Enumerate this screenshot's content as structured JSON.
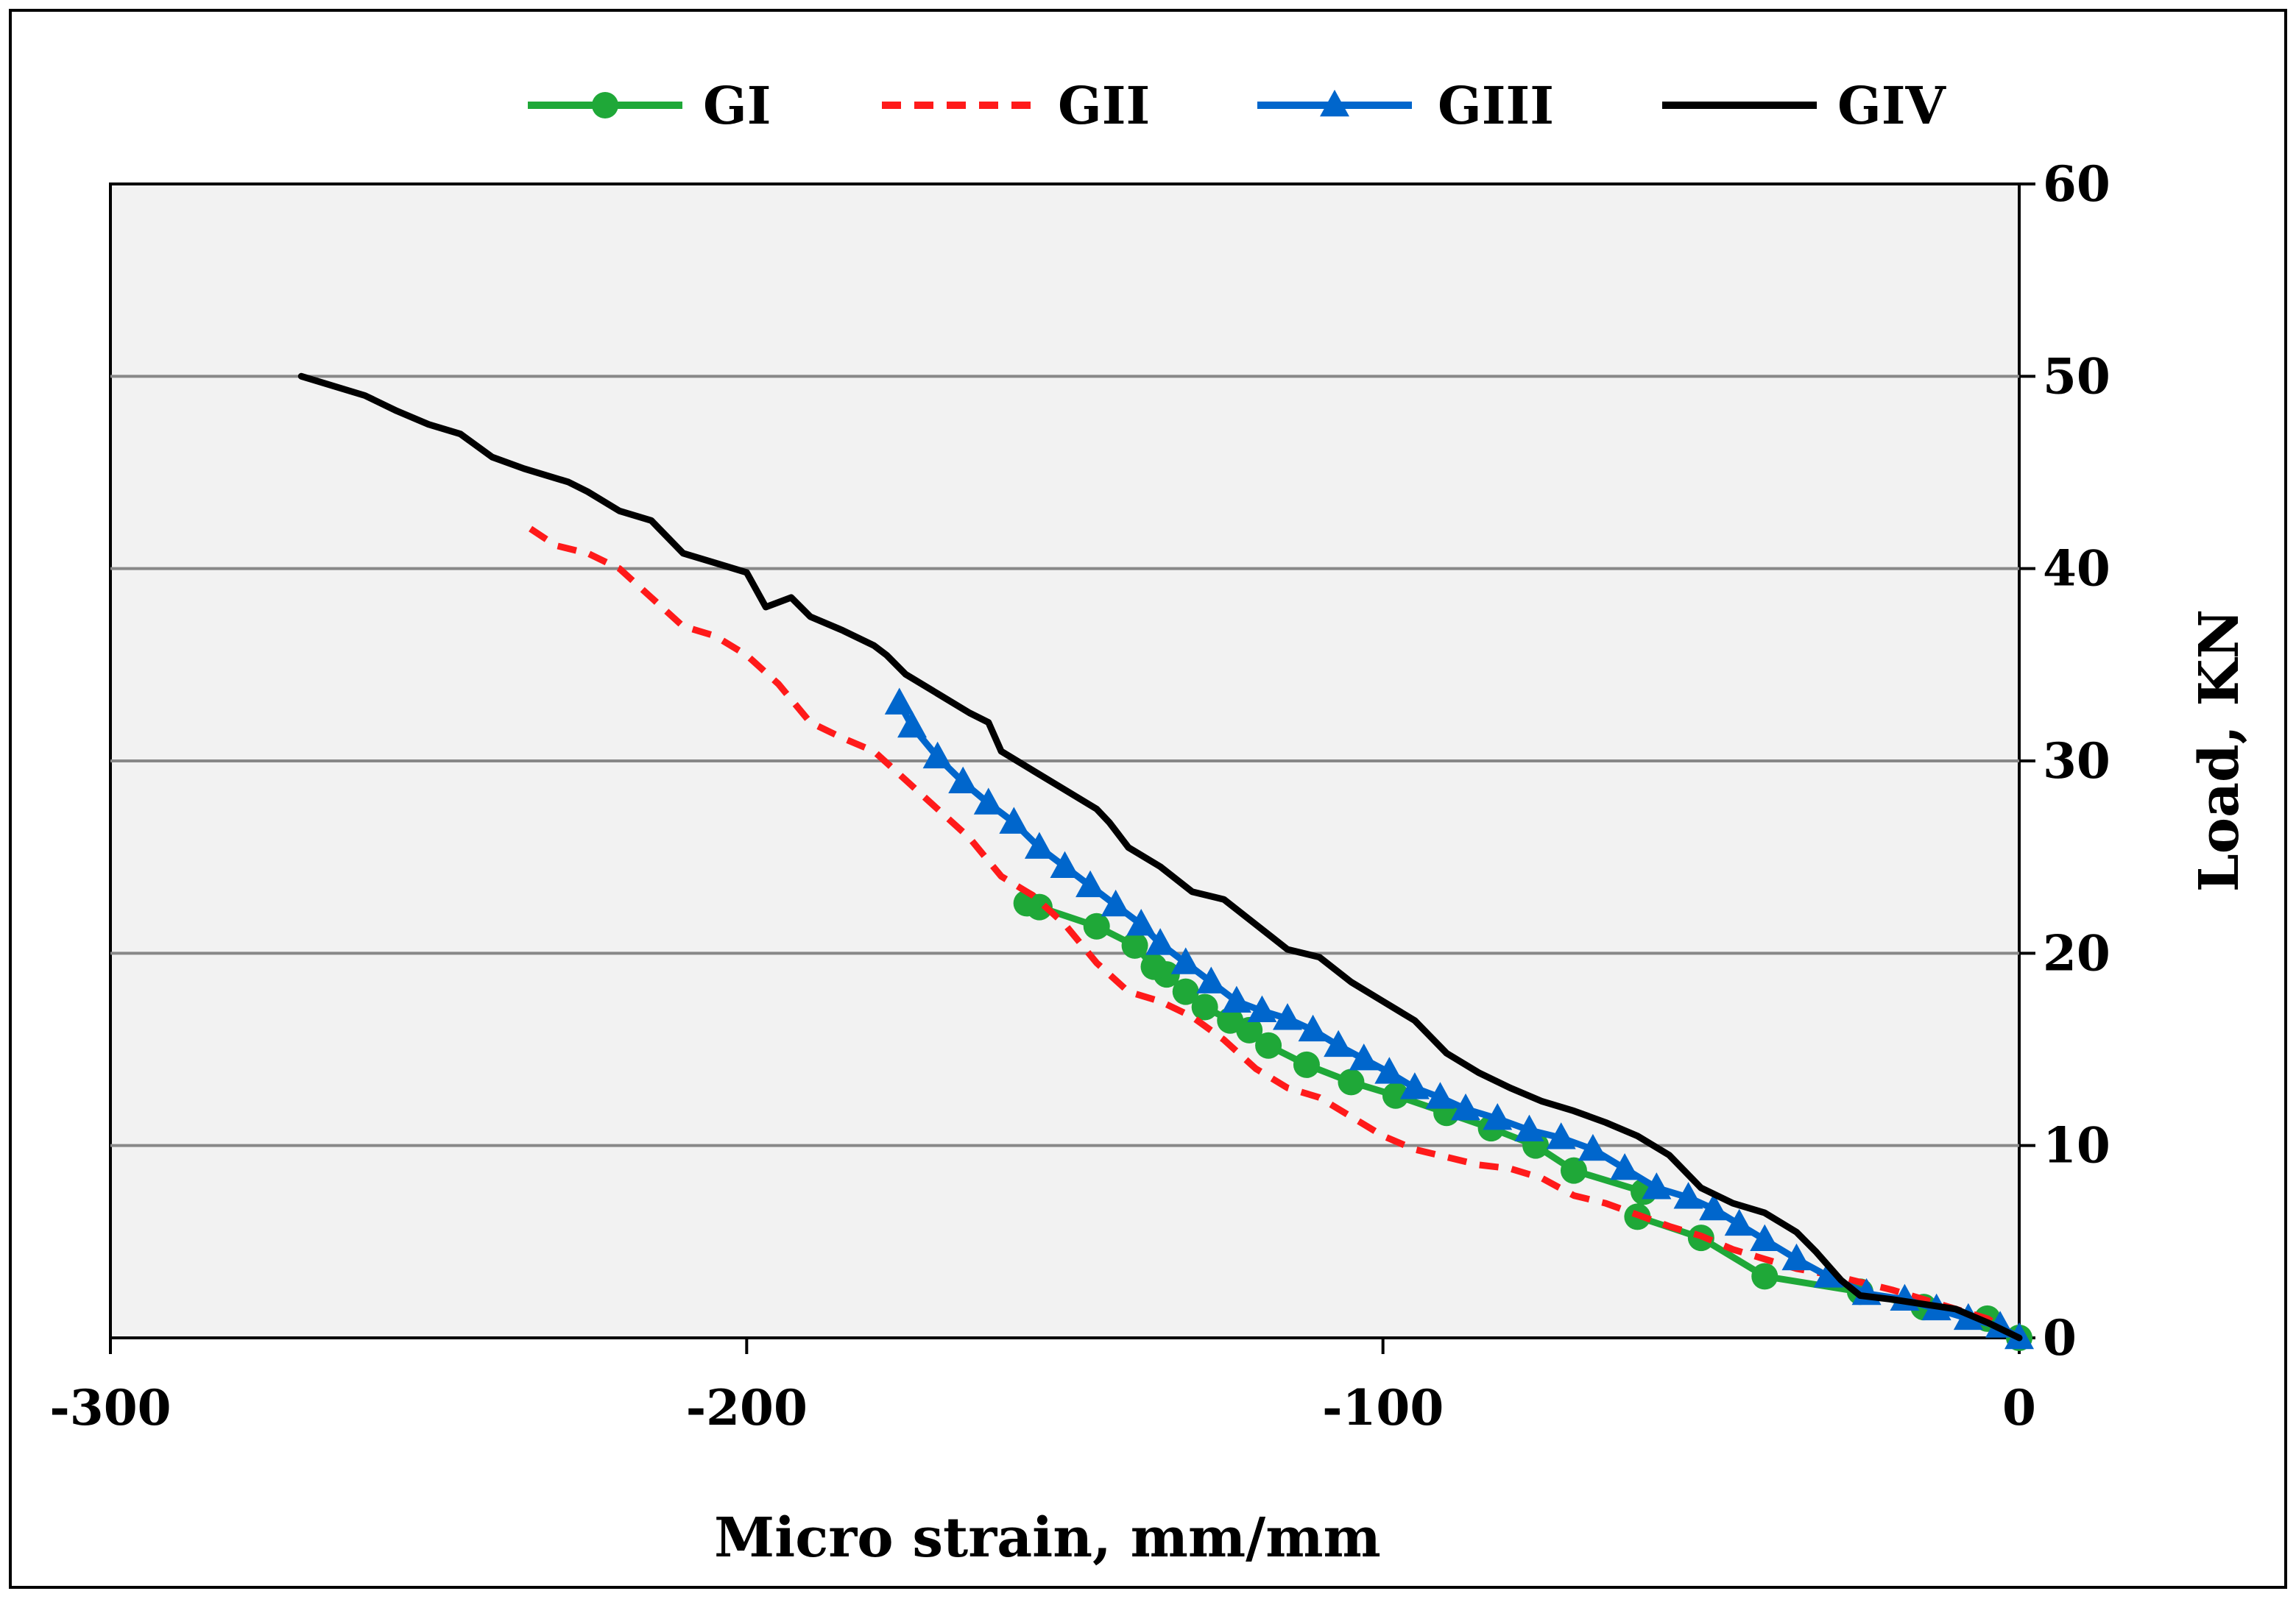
{
  "chart_data": {
    "type": "line",
    "title": "",
    "xlabel": "Micro strain, mm/mm",
    "ylabel": "Load, KN",
    "xlim": [
      -300,
      0
    ],
    "ylim": [
      0,
      60
    ],
    "xticks": [
      -300,
      -200,
      -100,
      0
    ],
    "yticks": [
      0,
      10,
      20,
      30,
      40,
      50,
      60
    ],
    "xtick_labels": [
      "-300",
      "-200",
      "-100",
      "0"
    ],
    "ytick_labels": [
      "0",
      "10",
      "20",
      "30",
      "40",
      "50",
      "60"
    ],
    "grid": "horizontal",
    "y_axis_side": "right",
    "legend_position": "top",
    "background": "#f2f2f2",
    "series": [
      {
        "name": "GI",
        "color": "#1fa838",
        "style": "solid-circle-markers",
        "x": [
          0,
          -5,
          -15,
          -25,
          -40,
          -50,
          -60,
          -59,
          -70,
          -76,
          -83,
          -90,
          -98,
          -105,
          -112,
          -118,
          -121,
          -124,
          -128,
          -131,
          -134,
          -136,
          -139,
          -145,
          -154,
          -156
        ],
        "y": [
          0,
          1.0,
          1.6,
          2.4,
          3.2,
          5.2,
          6.3,
          7.6,
          8.7,
          10.0,
          10.9,
          11.7,
          12.6,
          13.3,
          14.2,
          15.2,
          16.0,
          16.5,
          17.2,
          18.0,
          18.9,
          19.3,
          20.4,
          21.4,
          22.4,
          22.6
        ]
      },
      {
        "name": "GII",
        "color": "#ff1a1a",
        "style": "dashed",
        "x": [
          0,
          -5,
          -10,
          -15,
          -20,
          -25,
          -30,
          -35,
          -40,
          -45,
          -50,
          -55,
          -60,
          -65,
          -70,
          -75,
          -80,
          -85,
          -90,
          -95,
          -100,
          -105,
          -110,
          -115,
          -120,
          -125,
          -130,
          -135,
          -140,
          -145,
          -150,
          -155,
          -160,
          -165,
          -170,
          -175,
          -180,
          -185,
          -190,
          -195,
          -200,
          -205,
          -210,
          -215,
          -220,
          -225,
          -230,
          -235
        ],
        "y": [
          0,
          1.0,
          1.5,
          2.0,
          2.5,
          2.9,
          3.3,
          3.6,
          4.1,
          4.6,
          5.3,
          5.8,
          6.4,
          7.0,
          7.4,
          8.3,
          8.8,
          9.0,
          9.4,
          9.8,
          10.5,
          11.5,
          12.5,
          13.0,
          14.0,
          15.5,
          16.7,
          17.5,
          18.0,
          19.5,
          21.5,
          23.0,
          24.0,
          26.0,
          27.5,
          29.0,
          30.5,
          31.2,
          32.0,
          34.0,
          35.5,
          36.5,
          37.0,
          38.5,
          40.0,
          40.8,
          41.2,
          42.3
        ]
      },
      {
        "name": "GIII",
        "color": "#0066cc",
        "style": "solid-triangle-markers",
        "x": [
          0,
          -3,
          -8,
          -13,
          -18,
          -24,
          -30,
          -35,
          -40,
          -44,
          -48,
          -52,
          -57,
          -62,
          -67,
          -72,
          -77,
          -82,
          -87,
          -91,
          -95,
          -99,
          -103,
          -107,
          -111,
          -115,
          -119,
          -123,
          -127,
          -131,
          -135,
          -138,
          -142,
          -146,
          -150,
          -154,
          -158,
          -162,
          -166,
          -170,
          -174,
          -176
        ],
        "y": [
          0,
          0.6,
          1.0,
          1.5,
          2.0,
          2.3,
          3.2,
          4.1,
          5.1,
          5.9,
          6.7,
          7.3,
          7.8,
          8.8,
          9.8,
          10.4,
          10.8,
          11.4,
          11.9,
          12.5,
          13.0,
          13.8,
          14.5,
          15.2,
          16.0,
          16.6,
          17.0,
          17.5,
          18.5,
          19.5,
          20.5,
          21.5,
          22.5,
          23.5,
          24.5,
          25.5,
          26.8,
          27.8,
          28.9,
          30.2,
          31.8,
          33.0
        ]
      },
      {
        "name": "GIV",
        "color": "#000000",
        "style": "solid",
        "x": [
          0,
          -5,
          -10,
          -20,
          -25,
          -28,
          -32,
          -35,
          -40,
          -45,
          -50,
          -55,
          -60,
          -65,
          -70,
          -75,
          -80,
          -85,
          -90,
          -95,
          -100,
          -105,
          -110,
          -115,
          -120,
          -125,
          -130,
          -135,
          -140,
          -143,
          -145,
          -150,
          -155,
          -160,
          -162,
          -165,
          -170,
          -175,
          -178,
          -180,
          -185,
          -190,
          -193,
          -197,
          -200,
          -205,
          -210,
          -215,
          -220,
          -225,
          -228,
          -235,
          -240,
          -245,
          -250,
          -255,
          -260,
          -270
        ],
        "y": [
          0,
          0.8,
          1.5,
          2.0,
          2.2,
          3.0,
          4.5,
          5.5,
          6.5,
          7.0,
          7.8,
          9.5,
          10.5,
          11.2,
          11.8,
          12.3,
          13.0,
          13.8,
          14.8,
          16.5,
          17.5,
          18.5,
          19.8,
          20.2,
          21.5,
          22.8,
          23.2,
          24.5,
          25.5,
          26.8,
          27.5,
          28.5,
          29.5,
          30.5,
          32.0,
          32.5,
          33.5,
          34.5,
          35.5,
          36.0,
          36.8,
          37.5,
          38.5,
          38.0,
          39.8,
          40.3,
          40.8,
          42.5,
          43.0,
          44.0,
          44.5,
          45.2,
          45.8,
          47.0,
          47.5,
          48.2,
          49.0,
          50.0
        ]
      }
    ]
  }
}
